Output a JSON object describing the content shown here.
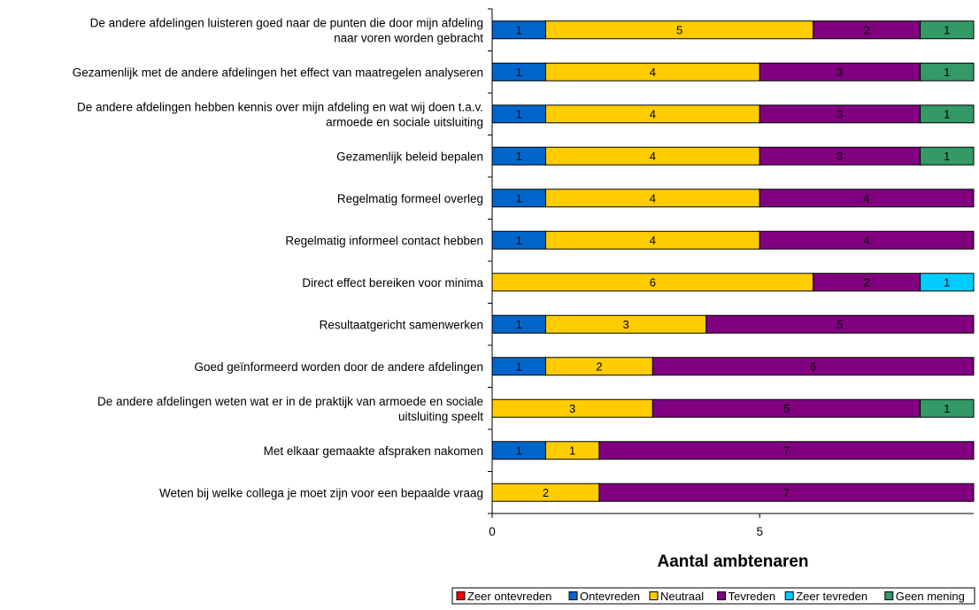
{
  "chart_data": {
    "type": "bar",
    "orientation": "horizontal",
    "stacked": true,
    "categories": [
      [
        "De andere afdelingen luisteren goed naar de punten die door mijn afdeling",
        "naar voren worden gebracht"
      ],
      [
        "Gezamenlijk met de andere afdelingen het effect van maatregelen analyseren"
      ],
      [
        "De andere afdelingen hebben kennis over mijn afdeling en wat wij doen t.a.v.",
        "armoede en sociale uitsluiting"
      ],
      [
        "Gezamenlijk beleid bepalen"
      ],
      [
        "Regelmatig formeel overleg"
      ],
      [
        "Regelmatig informeel contact hebben"
      ],
      [
        "Direct effect bereiken voor minima"
      ],
      [
        "Resultaatgericht samenwerken"
      ],
      [
        "Goed geïnformeerd worden door de andere afdelingen"
      ],
      [
        "De andere afdelingen weten wat er in de praktijk van armoede en sociale",
        "uitsluiting speelt"
      ],
      [
        "Met elkaar gemaakte afspraken nakomen"
      ],
      [
        "Weten bij welke collega je moet zijn voor een bepaalde vraag"
      ]
    ],
    "series": [
      {
        "name": "Zeer ontevreden",
        "color": "#ff0000",
        "values": [
          0,
          0,
          0,
          0,
          0,
          0,
          0,
          0,
          0,
          0,
          0,
          0
        ]
      },
      {
        "name": "Ontevreden",
        "color": "#0066cc",
        "values": [
          1,
          1,
          1,
          1,
          1,
          1,
          0,
          1,
          1,
          0,
          1,
          0
        ]
      },
      {
        "name": "Neutraal",
        "color": "#ffcc00",
        "values": [
          5,
          4,
          4,
          4,
          4,
          4,
          6,
          3,
          2,
          3,
          1,
          2
        ]
      },
      {
        "name": "Tevreden",
        "color": "#800080",
        "values": [
          2,
          3,
          3,
          3,
          4,
          4,
          2,
          5,
          6,
          5,
          7,
          7
        ]
      },
      {
        "name": "Zeer tevreden",
        "color": "#00ccff",
        "values": [
          0,
          0,
          0,
          0,
          0,
          0,
          1,
          0,
          0,
          0,
          0,
          0
        ]
      },
      {
        "name": "Geen mening",
        "color": "#339966",
        "values": [
          1,
          1,
          1,
          1,
          0,
          0,
          0,
          0,
          0,
          1,
          0,
          0
        ]
      }
    ],
    "xlabel": "Aantal ambtenaren",
    "xlim": [
      0,
      9
    ],
    "xticks": [
      "0",
      "5"
    ],
    "xtick_values": [
      0,
      5
    ],
    "legend_position": "bottom-right",
    "grid": false
  }
}
